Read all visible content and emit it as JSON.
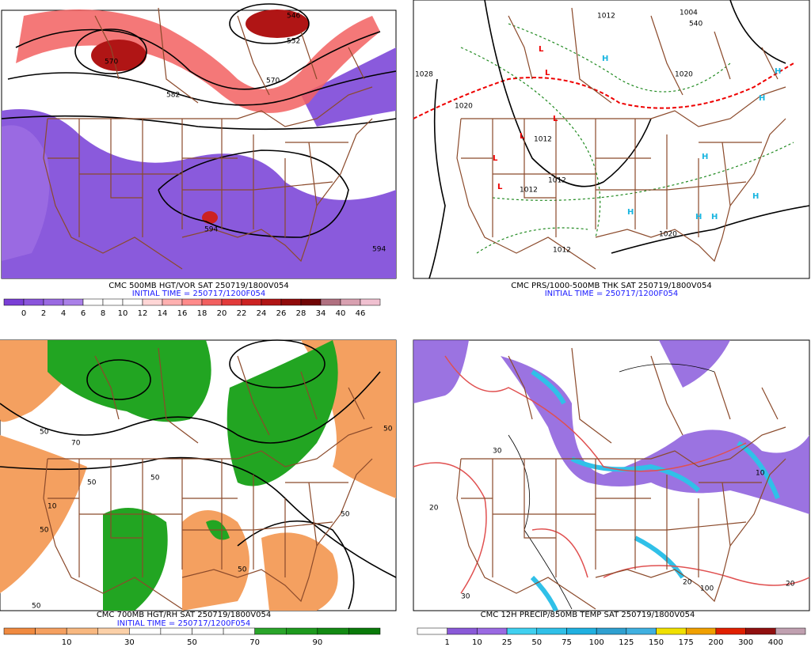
{
  "panels": [
    {
      "title": "CMC 500MB HGT/VOR SAT 250719/1800V054",
      "initial_time": "INITIAL TIME = 250717/1200F054",
      "colorbar": {
        "labels": [
          "0",
          "2",
          "4",
          "6",
          "8",
          "10",
          "12",
          "14",
          "16",
          "18",
          "20",
          "22",
          "24",
          "26",
          "28",
          "34",
          "40",
          "46"
        ],
        "colors": [
          "#7a3fd6",
          "#8a55dc",
          "#9a6ae2",
          "#aa80e8",
          "#ffffff",
          "#ffffff",
          "#ffffff",
          "#ffd6d6",
          "#ffb0b0",
          "#ff8a8a",
          "#f26060",
          "#e23a3a",
          "#cc2222",
          "#b01515",
          "#900a0a",
          "#700505",
          "#b07080",
          "#d8a0b0",
          "#f0c0d0"
        ]
      },
      "map_labels": [
        "570",
        "552",
        "546",
        "582",
        "570",
        "594",
        "594"
      ]
    },
    {
      "title": "CMC PRS/1000-500MB THK SAT 250719/1800V054",
      "initial_time": "INITIAL TIME = 250717/1200F054",
      "map_labels": [
        "1028",
        "1020",
        "1012",
        "1004",
        "540",
        "1012",
        "1012",
        "1012",
        "1020",
        "1020",
        "1012"
      ]
    },
    {
      "title": "CMC 700MB HGT/RH SAT 250719/1800V054",
      "initial_time": "INITIAL TIME = 250717/1200F054",
      "colorbar": {
        "labels": [
          "10",
          "30",
          "50",
          "70",
          "90"
        ],
        "colors": [
          "#f08a40",
          "#f5a060",
          "#f8b880",
          "#fbd0a8",
          "#ffffff",
          "#ffffff",
          "#ffffff",
          "#ffffff",
          "#2aa52a",
          "#1e9a1e",
          "#138a13",
          "#0a7a0a"
        ]
      },
      "map_labels": [
        "50",
        "10",
        "50",
        "50",
        "50",
        "50",
        "70",
        "50",
        "50",
        "50"
      ]
    },
    {
      "title": "CMC 12H PRECIP/850MB TEMP SAT 250719/1800V054",
      "colorbar": {
        "labels": [
          "1",
          "10",
          "25",
          "50",
          "75",
          "100",
          "125",
          "150",
          "175",
          "200",
          "300",
          "400"
        ],
        "colors": [
          "#ffffff",
          "#8a5ad8",
          "#9a6ae2",
          "#40d0f0",
          "#30c0e8",
          "#20b0e0",
          "#2fa0d0",
          "#40b0e0",
          "#f0e000",
          "#f0a000",
          "#e02000",
          "#901010",
          "#c0a0b0"
        ]
      },
      "map_labels": [
        "30",
        "20",
        "10",
        "20",
        "30",
        "100",
        "20"
      ]
    }
  ]
}
